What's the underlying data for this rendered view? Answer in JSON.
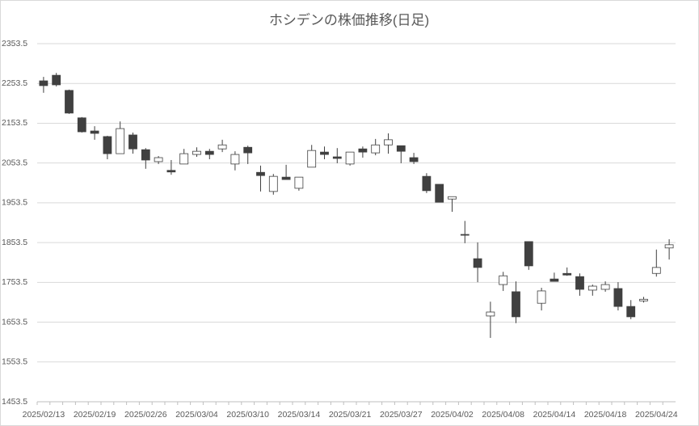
{
  "chart_data": {
    "type": "candlestick",
    "title": "ホシデンの株価推移(日足)",
    "categories": [
      "2025/02/13",
      null,
      null,
      null,
      "2025/02/19",
      null,
      null,
      null,
      "2025/02/26",
      null,
      null,
      null,
      "2025/03/04",
      null,
      null,
      null,
      "2025/03/10",
      null,
      null,
      null,
      "2025/03/14",
      null,
      null,
      null,
      "2025/03/21",
      null,
      null,
      null,
      "2025/03/27",
      null,
      null,
      null,
      "2025/04/02",
      null,
      null,
      null,
      "2025/04/08",
      null,
      null,
      null,
      "2025/04/14",
      null,
      null,
      null,
      "2025/04/18",
      null,
      null,
      null,
      "2025/04/24",
      null
    ],
    "open": [
      2260,
      2274,
      2236,
      2167,
      2134,
      2120,
      2077,
      2124,
      2087,
      2057,
      2035,
      2051,
      2075,
      2083,
      2089,
      2051,
      2093,
      2030,
      1982,
      2018,
      1990,
      2043,
      2081,
      2069,
      2051,
      2089,
      2079,
      2099,
      2097,
      2067,
      2020,
      2000,
      1963,
      1874,
      1813,
      1669,
      1748,
      1730,
      1856,
      1701,
      1762,
      1776,
      1768,
      1734,
      1736,
      1738,
      1693,
      1707,
      1776,
      1840
    ],
    "high": [
      2270,
      2280,
      2238,
      2169,
      2146,
      2122,
      2158,
      2130,
      2091,
      2071,
      2061,
      2089,
      2093,
      2089,
      2112,
      2083,
      2097,
      2047,
      2026,
      2049,
      2018,
      2099,
      2095,
      2091,
      2081,
      2095,
      2114,
      2128,
      2097,
      2079,
      2028,
      2000,
      1969,
      1908,
      1854,
      1705,
      1780,
      1756,
      1856,
      1740,
      1778,
      1791,
      1776,
      1748,
      1756,
      1754,
      1709,
      1717,
      1836,
      1862
    ],
    "low": [
      2230,
      2246,
      2177,
      2130,
      2112,
      2063,
      2077,
      2077,
      2039,
      2051,
      2024,
      2051,
      2069,
      2063,
      2081,
      2035,
      2051,
      1982,
      1974,
      2012,
      1984,
      2043,
      2063,
      2053,
      2047,
      2067,
      2073,
      2077,
      2053,
      2051,
      1978,
      1955,
      1931,
      1852,
      1754,
      1614,
      1732,
      1651,
      1785,
      1683,
      1756,
      1770,
      1720,
      1720,
      1730,
      1683,
      1661,
      1703,
      1768,
      1811
    ],
    "close": [
      2248,
      2250,
      2179,
      2132,
      2128,
      2077,
      2140,
      2089,
      2061,
      2067,
      2031,
      2077,
      2083,
      2075,
      2099,
      2075,
      2079,
      2022,
      2020,
      2012,
      2018,
      2085,
      2075,
      2065,
      2081,
      2081,
      2099,
      2112,
      2083,
      2057,
      1984,
      1955,
      1969,
      1872,
      1791,
      1679,
      1770,
      1667,
      1795,
      1732,
      1756,
      1772,
      1736,
      1744,
      1748,
      1693,
      1667,
      1711,
      1791,
      1848
    ],
    "up_color": "#ffffff",
    "down_color": "#404040",
    "edge_color": "#404040",
    "ylim": [
      1453.5,
      2353.5
    ],
    "yticks": [
      1453.5,
      1553.5,
      1653.5,
      1753.5,
      1853.5,
      1953.5,
      2053.5,
      2153.5,
      2253.5,
      2353.5
    ],
    "grid": true
  }
}
